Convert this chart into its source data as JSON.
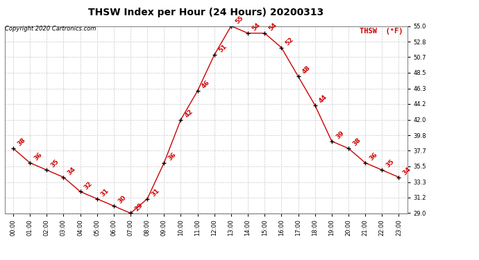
{
  "title": "THSW Index per Hour (24 Hours) 20200313",
  "copyright_text": "Copyright 2020 Cartronics.com",
  "legend_label": "THSW  (°F)",
  "hours": [
    0,
    1,
    2,
    3,
    4,
    5,
    6,
    7,
    8,
    9,
    10,
    11,
    12,
    13,
    14,
    15,
    16,
    17,
    18,
    19,
    20,
    21,
    22,
    23
  ],
  "values": [
    38,
    36,
    35,
    34,
    32,
    31,
    30,
    29,
    31,
    36,
    42,
    46,
    51,
    55,
    54,
    54,
    52,
    48,
    44,
    39,
    38,
    36,
    35,
    34
  ],
  "ylim_min": 29.0,
  "ylim_max": 55.0,
  "yticks": [
    29.0,
    31.2,
    33.3,
    35.5,
    37.7,
    39.8,
    42.0,
    44.2,
    46.3,
    48.5,
    50.7,
    52.8,
    55.0
  ],
  "line_color": "#cc0000",
  "marker_color": "#000000",
  "label_color": "#cc0000",
  "grid_color": "#c8c8c8",
  "bg_color": "#ffffff",
  "title_fontsize": 10,
  "label_fontsize": 6.5,
  "tick_fontsize": 6,
  "legend_fontsize": 7.5,
  "copyright_fontsize": 6
}
